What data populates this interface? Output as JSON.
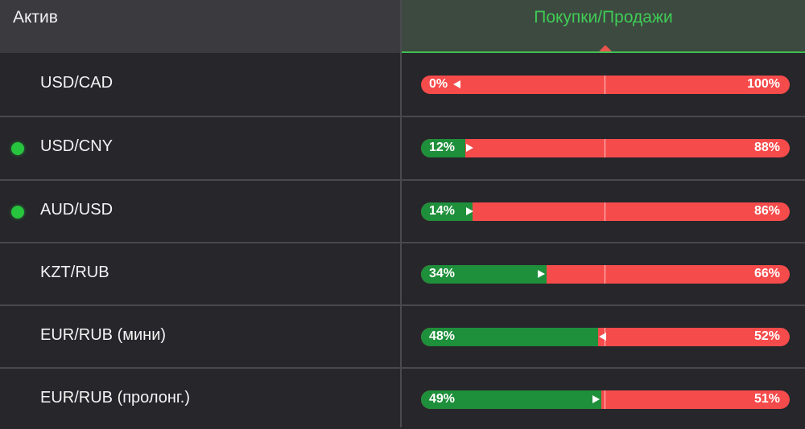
{
  "header": {
    "asset_label": "Актив",
    "ratio_label": "Покупки/Продажи"
  },
  "colors": {
    "buy": "#1e8f3a",
    "sell": "#f64b4b",
    "active_dot": "#27c43e",
    "header_accent": "#3fcc55"
  },
  "rows": [
    {
      "asset": "USD/CAD",
      "active": false,
      "buy_pct": 0,
      "buy_label": "0%",
      "sell_label": "100%",
      "arrow": "left"
    },
    {
      "asset": "USD/CNY",
      "active": true,
      "buy_pct": 12,
      "buy_label": "12%",
      "sell_label": "88%",
      "arrow": "right"
    },
    {
      "asset": "AUD/USD",
      "active": true,
      "buy_pct": 14,
      "buy_label": "14%",
      "sell_label": "86%",
      "arrow": "right"
    },
    {
      "asset": "KZT/RUB",
      "active": false,
      "buy_pct": 34,
      "buy_label": "34%",
      "sell_label": "66%",
      "arrow": "right"
    },
    {
      "asset": "EUR/RUB (мини)",
      "active": false,
      "buy_pct": 48,
      "buy_label": "48%",
      "sell_label": "52%",
      "arrow": "left"
    },
    {
      "asset": "EUR/RUB (пролонг.)",
      "active": false,
      "buy_pct": 49,
      "buy_label": "49%",
      "sell_label": "51%",
      "arrow": "right"
    }
  ]
}
